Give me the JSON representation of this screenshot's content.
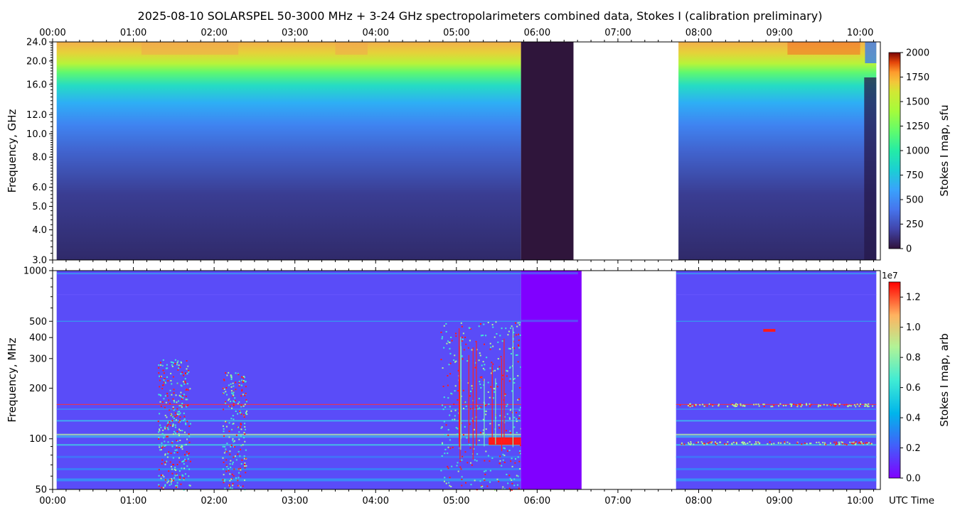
{
  "title": "2025-08-10  SOLARSPEL  50-3000 MHz  +  3-24 GHz  spectropolarimeters combined data,  Stokes I  (calibration preliminary)",
  "time_ticks": [
    "00:00",
    "01:00",
    "02:00",
    "03:00",
    "04:00",
    "05:00",
    "06:00",
    "07:00",
    "08:00",
    "09:00",
    "10:00"
  ],
  "xlabel": "UTC Time",
  "chart_data": [
    {
      "type": "heatmap",
      "panel": "upper",
      "ylabel": "Frequency, GHz",
      "y_scale": "log",
      "ylim": [
        3.0,
        24.0
      ],
      "y_ticks": [
        "3.0",
        "4.0",
        "5.0",
        "6.0",
        "8.0",
        "10.0",
        "12.0",
        "16.0",
        "20.0",
        "24.0"
      ],
      "x_range_hours": [
        0,
        10.25
      ],
      "colorbar": {
        "label": "Stokes I map, sfu",
        "range": [
          0,
          2000
        ],
        "ticks": [
          "0",
          "250",
          "500",
          "750",
          "1000",
          "1250",
          "1500",
          "1750",
          "2000"
        ],
        "colormap": "turbo"
      },
      "data_segments_hours": [
        [
          0.05,
          5.8
        ],
        [
          7.75,
          10.2
        ]
      ],
      "dark_segment_hours": [
        5.8,
        6.45
      ],
      "missing_segment_hours": [
        6.45,
        7.75
      ],
      "frequency_profile_sfu": [
        {
          "ghz": 3.0,
          "sfu": 110
        },
        {
          "ghz": 4.0,
          "sfu": 150
        },
        {
          "ghz": 6.0,
          "sfu": 230
        },
        {
          "ghz": 8.0,
          "sfu": 330
        },
        {
          "ghz": 10.0,
          "sfu": 420
        },
        {
          "ghz": 12.0,
          "sfu": 540
        },
        {
          "ghz": 16.0,
          "sfu": 800
        },
        {
          "ghz": 20.0,
          "sfu": 1000
        },
        {
          "ghz": 24.0,
          "sfu": 1300
        }
      ]
    },
    {
      "type": "heatmap",
      "panel": "lower",
      "ylabel": "Frequency, MHz",
      "y_scale": "log",
      "ylim": [
        50,
        1000
      ],
      "y_ticks": [
        "50",
        "100",
        "200",
        "300",
        "400",
        "500",
        "1000"
      ],
      "x_range_hours": [
        0,
        10.25
      ],
      "colorbar": {
        "label": "Stokes I map, arb",
        "exponent": "1e7",
        "range": [
          0.0,
          1.3
        ],
        "ticks": [
          "0.0",
          "0.2",
          "0.4",
          "0.6",
          "0.8",
          "1.0",
          "1.2"
        ],
        "colormap": "rainbow"
      },
      "data_segments_hours": [
        [
          0.05,
          5.8
        ],
        [
          7.72,
          10.2
        ]
      ],
      "dark_segment_hours": [
        5.8,
        6.55
      ],
      "missing_segment_hours": [
        6.55,
        7.72
      ],
      "bursts": [
        {
          "start_hours": 1.3,
          "end_hours": 1.7,
          "freq_mhz": [
            50,
            300
          ]
        },
        {
          "start_hours": 2.1,
          "end_hours": 2.4,
          "freq_mhz": [
            50,
            250
          ]
        },
        {
          "start_hours": 4.8,
          "end_hours": 5.8,
          "freq_mhz": [
            50,
            500
          ]
        },
        {
          "start_hours": 5.4,
          "end_hours": 5.8,
          "freq_mhz": [
            92,
            102
          ]
        },
        {
          "start_hours": 8.8,
          "end_hours": 8.95,
          "freq_mhz": [
            440,
            450
          ]
        }
      ]
    }
  ]
}
